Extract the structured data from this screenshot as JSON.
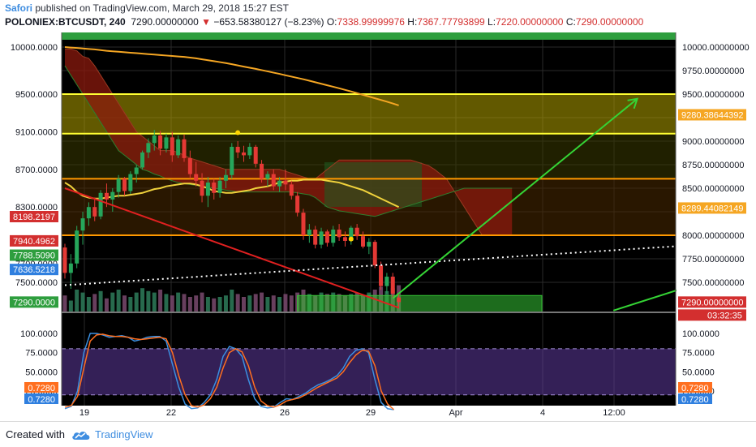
{
  "header": {
    "author": "Safori",
    "published": "published on TradingView.com, March 29, 2018 15:27 EST",
    "symbol": "POLONIEX:BTCUSDT, 240",
    "price": "7290.00000000",
    "arrow": "▼",
    "change": "−653.58380127 (−8.23%)",
    "o_label": "O:",
    "o_value": "7338.99999976",
    "h_label": "H:",
    "h_value": "7367.77793899",
    "l_label": "L:",
    "l_value": "7220.00000000",
    "c_label": "C:",
    "c_value": "7290.00000000"
  },
  "footer": {
    "created_with": "Created with",
    "brand": "TradingView",
    "logo_icon": "tradingview-cloud-icon"
  },
  "colors": {
    "background": "#000000",
    "grid": "#2a2a2a",
    "candle_up": "#26a65b",
    "candle_down": "#e53935",
    "kumo_bear": "#8b1a0e",
    "kumo_bull": "#1f5a1f",
    "ma_yellow": "#f0d23c",
    "ma_orange": "#f5a623",
    "stoch_k": "#3b8fe0",
    "stoch_d": "#ff6f1f",
    "stoch_band": "#5e3a9e"
  },
  "chart_data": [
    {
      "type": "line",
      "title": "POLONIEX:BTCUSDT, 240",
      "y_axis_left": {
        "ticks": [
          "10000.0000",
          "9500.0000",
          "9100.0000",
          "8700.0000",
          "8300.0000",
          "7700.0000",
          "7500.0000"
        ],
        "badges": [
          {
            "text": "8198.2197",
            "value": 8198.2197,
            "color": "#d32f2f"
          },
          {
            "text": "7940.4962",
            "value": 7940.4962,
            "color": "#d32f2f"
          },
          {
            "text": "7788.5090",
            "value": 7788.509,
            "color": "#2e9e3e"
          },
          {
            "text": "7636.5218",
            "value": 7636.5218,
            "color": "#2f7fdf"
          },
          {
            "text": "7290.0000",
            "value": 7290.0,
            "color": "#2e9e3e"
          }
        ]
      },
      "y_axis_right": {
        "ticks": [
          "10000.00000000",
          "9750.00000000",
          "9500.00000000",
          "9000.00000000",
          "8750.00000000",
          "8500.00000000",
          "8000.00000000",
          "7750.00000000",
          "7500.00000000"
        ],
        "badges": [
          {
            "text": "9280.38644392",
            "value": 9280.38644392,
            "color": "#f5a623"
          },
          {
            "text": "8289.44082149",
            "value": 8289.44082149,
            "color": "#f5a623"
          },
          {
            "text": "7290.00000000",
            "value": 7290.0,
            "color": "#d32f2f"
          },
          {
            "text": "03:32:35",
            "color": "#d32f2f"
          }
        ]
      },
      "x_axis": {
        "ticks": [
          "19",
          "22",
          "26",
          "29",
          "Apr",
          "4",
          "12:00"
        ]
      },
      "horizontal_levels": [
        {
          "value": 9500,
          "color": "#ffff33"
        },
        {
          "value": 9080,
          "color": "#ffff33"
        },
        {
          "value": 8600,
          "color": "#ff9900"
        },
        {
          "value": 8000,
          "color": "#ff9900"
        }
      ],
      "zones": [
        {
          "from": 9080,
          "to": 9500,
          "color": "#b3a300"
        },
        {
          "from": 8600,
          "to": 9080,
          "color": "#3a3a00"
        },
        {
          "from": 8000,
          "to": 8600,
          "color": "#4a2a00"
        }
      ],
      "candles": [
        [
          7870,
          7910,
          7540,
          7600
        ],
        [
          7600,
          7800,
          7430,
          7700
        ],
        [
          7700,
          8100,
          7650,
          8050
        ],
        [
          8050,
          8250,
          7900,
          8180
        ],
        [
          8180,
          8350,
          8100,
          8300
        ],
        [
          8300,
          8400,
          8150,
          8200
        ],
        [
          8200,
          8480,
          8170,
          8450
        ],
        [
          8450,
          8550,
          8300,
          8380
        ],
        [
          8380,
          8500,
          8250,
          8460
        ],
        [
          8460,
          8640,
          8400,
          8600
        ],
        [
          8600,
          8620,
          8420,
          8470
        ],
        [
          8470,
          8680,
          8440,
          8650
        ],
        [
          8650,
          8750,
          8560,
          8720
        ],
        [
          8720,
          8900,
          8700,
          8880
        ],
        [
          8880,
          9030,
          8820,
          8980
        ],
        [
          8980,
          9120,
          8900,
          9060
        ],
        [
          9060,
          9110,
          8850,
          8920
        ],
        [
          8920,
          9080,
          8880,
          9040
        ],
        [
          9040,
          9100,
          8780,
          8850
        ],
        [
          8850,
          9060,
          8820,
          9020
        ],
        [
          9020,
          9070,
          8780,
          8820
        ],
        [
          8820,
          8900,
          8600,
          8650
        ],
        [
          8650,
          8780,
          8520,
          8580
        ],
        [
          8580,
          8660,
          8350,
          8420
        ],
        [
          8420,
          8620,
          8300,
          8560
        ],
        [
          8560,
          8600,
          8380,
          8450
        ],
        [
          8450,
          8620,
          8400,
          8580
        ],
        [
          8580,
          8700,
          8500,
          8640
        ],
        [
          8640,
          8980,
          8600,
          8940
        ],
        [
          8940,
          9000,
          8820,
          8880
        ],
        [
          8880,
          8950,
          8780,
          8850
        ],
        [
          8850,
          8980,
          8810,
          8940
        ],
        [
          8940,
          8960,
          8720,
          8760
        ],
        [
          8760,
          8800,
          8560,
          8600
        ],
        [
          8600,
          8680,
          8520,
          8650
        ],
        [
          8650,
          8700,
          8480,
          8520
        ],
        [
          8520,
          8620,
          8460,
          8580
        ],
        [
          8580,
          8700,
          8480,
          8540
        ],
        [
          8540,
          8580,
          8380,
          8420
        ],
        [
          8420,
          8460,
          8200,
          8240
        ],
        [
          8240,
          8280,
          7950,
          8000
        ],
        [
          8000,
          8120,
          7920,
          8060
        ],
        [
          8060,
          8100,
          7860,
          7900
        ],
        [
          7900,
          8080,
          7860,
          8040
        ],
        [
          8040,
          8060,
          7880,
          7920
        ],
        [
          7920,
          8100,
          7880,
          8060
        ],
        [
          8060,
          8120,
          7940,
          7980
        ],
        [
          7980,
          8040,
          7880,
          7940
        ],
        [
          7940,
          8100,
          7900,
          8080
        ],
        [
          8080,
          8120,
          7950,
          7990
        ],
        [
          7990,
          8040,
          7860,
          7880
        ],
        [
          7880,
          7970,
          7800,
          7930
        ],
        [
          7930,
          7950,
          7650,
          7680
        ],
        [
          7680,
          7720,
          7420,
          7460
        ],
        [
          7460,
          7600,
          7380,
          7560
        ],
        [
          7560,
          7600,
          7340,
          7380
        ],
        [
          7338.99999976,
          7367.77793899,
          7220,
          7290
        ]
      ],
      "volume": [
        220,
        150,
        300,
        260,
        200,
        240,
        280,
        180,
        260,
        300,
        220,
        200,
        260,
        320,
        280,
        260,
        300,
        240,
        220,
        260,
        240,
        200,
        220,
        260,
        200,
        180,
        200,
        220,
        300,
        240,
        200,
        220,
        240,
        260,
        200,
        220,
        200,
        240,
        220,
        260,
        300,
        240,
        220,
        260,
        240,
        260,
        240,
        220,
        240,
        260,
        220,
        260,
        300,
        340,
        280,
        320,
        360
      ],
      "ma_yellow": [
        8560,
        8520,
        8460,
        8420,
        8400,
        8390,
        8390,
        8400,
        8410,
        8420,
        8420,
        8430,
        8440,
        8450,
        8470,
        8490,
        8500,
        8520,
        8530,
        8540,
        8550,
        8550,
        8540,
        8520,
        8500,
        8470,
        8460,
        8450,
        8450,
        8460,
        8470,
        8480,
        8500,
        8510,
        8520,
        8540,
        8560,
        8570,
        8580,
        8580,
        8590,
        8590,
        8590,
        8590,
        8580,
        8570,
        8560,
        8540,
        8520,
        8500,
        8480,
        8450,
        8420,
        8390,
        8360,
        8330,
        8300
      ],
      "ma_orange": [
        10000,
        9995,
        9990,
        9985,
        9980,
        9975,
        9968,
        9960,
        9955,
        9950,
        9945,
        9940,
        9935,
        9930,
        9925,
        9920,
        9915,
        9910,
        9905,
        9900,
        9895,
        9888,
        9880,
        9870,
        9860,
        9850,
        9840,
        9830,
        9818,
        9805,
        9792,
        9780,
        9768,
        9755,
        9742,
        9728,
        9715,
        9700,
        9686,
        9672,
        9658,
        9642,
        9626,
        9610,
        9594,
        9578,
        9562,
        9545,
        9528,
        9510,
        9492,
        9474,
        9456,
        9438,
        9420,
        9400,
        9380
      ],
      "kumo_top": [
        9980,
        9980,
        9960,
        9900,
        9880,
        9800,
        9700,
        9600,
        9500,
        9400,
        9300,
        9200,
        9100,
        9050,
        9000,
        8950,
        8900,
        8900,
        8900,
        8880,
        8850,
        8820,
        8800,
        8780,
        8760,
        8740,
        8720,
        8700,
        8700,
        8700,
        8700,
        8700,
        8700,
        8700,
        8700,
        8700,
        8700,
        8680,
        8660,
        8640,
        8620,
        8600,
        8600,
        8650,
        8700,
        8750,
        8800,
        8800,
        8800,
        8800,
        8800,
        8800,
        8800,
        8800,
        8800,
        8800,
        8800,
        8800,
        8800,
        8780,
        8760,
        8740,
        8700,
        8650,
        8600,
        8500,
        8400,
        8300,
        8200,
        8100,
        8000,
        8000,
        8000,
        8000,
        8000,
        8000
      ],
      "kumo_bottom": [
        9800,
        9700,
        9600,
        9500,
        9400,
        9300,
        9200,
        9100,
        9000,
        8900,
        8850,
        8800,
        8750,
        8700,
        8680,
        8650,
        8630,
        8600,
        8580,
        8560,
        8550,
        8540,
        8530,
        8520,
        8510,
        8500,
        8490,
        8480,
        8470,
        8460,
        8460,
        8460,
        8460,
        8460,
        8460,
        8460,
        8460,
        8460,
        8460,
        8450,
        8440,
        8430,
        8400,
        8350,
        8300,
        8280,
        8260,
        8250,
        8240,
        8230,
        8220,
        8210,
        8200,
        8220,
        8240,
        8260,
        8280,
        8300,
        8320,
        8340,
        8360,
        8380,
        8400,
        8420,
        8440,
        8460,
        8480,
        8500,
        8500,
        8500,
        8500,
        8500,
        8500,
        8500,
        8500,
        8500
      ],
      "trendline_red": {
        "from": {
          "bar": 0,
          "price": 8500
        },
        "to": {
          "bar": 56,
          "price": 7230
        }
      },
      "trendline_white_dotted": {
        "from": {
          "bar": 0,
          "price": 7470
        },
        "to": {
          "bar": 134,
          "price": 8010
        }
      },
      "trendlines_green": [
        {
          "from": {
            "bar": 55,
            "price": 7330
          },
          "to": {
            "bar": 96,
            "price": 9450
          }
        },
        {
          "from": {
            "bar": 92,
            "price": 7200
          },
          "to": {
            "bar": 134,
            "price": 8050
          }
        }
      ],
      "box_bottom_green": {
        "from": {
          "bar": 39,
          "price": 7360
        },
        "to": {
          "bar": 80,
          "price": 7185
        }
      },
      "markers": [
        {
          "bar": 29,
          "price": 9090
        },
        {
          "bar": 48,
          "price": 7960
        }
      ]
    },
    {
      "type": "line",
      "title": "Stochastic",
      "y_axis_left": {
        "ticks": [
          "100.0000",
          "75.0000",
          "50.0000",
          "25.0000"
        ],
        "badges": [
          {
            "text": "0.7280",
            "color": "#ff6f1f"
          },
          {
            "text": "0.7280",
            "color": "#2f7fdf"
          }
        ]
      },
      "y_axis_right": {
        "ticks": [
          "100.0000",
          "75.0000",
          "50.0000",
          "25.0000"
        ],
        "badges": [
          {
            "text": "0.7280",
            "color": "#ff6f1f"
          },
          {
            "text": "0.7280",
            "color": "#2f7fdf"
          }
        ]
      },
      "band": [
        20,
        80
      ],
      "series": [
        {
          "values": [
            2,
            5,
            25,
            75,
            100,
            100,
            98,
            95,
            96,
            97,
            95,
            90,
            92,
            95,
            96,
            96,
            90,
            60,
            30,
            8,
            2,
            3,
            10,
            20,
            40,
            70,
            83,
            80,
            70,
            40,
            15,
            5,
            3,
            4,
            10,
            15,
            14,
            18,
            22,
            28,
            33,
            36,
            40,
            45,
            55,
            70,
            78,
            80,
            75,
            40,
            10,
            2,
            0.728
          ]
        },
        {
          "values": [
            4,
            6,
            18,
            55,
            90,
            98,
            99,
            97,
            96,
            96,
            95,
            93,
            92,
            93,
            94,
            95,
            93,
            75,
            45,
            20,
            6,
            4,
            7,
            15,
            30,
            55,
            75,
            80,
            76,
            58,
            30,
            12,
            6,
            4,
            7,
            12,
            14,
            16,
            20,
            25,
            30,
            34,
            38,
            42,
            50,
            62,
            72,
            78,
            77,
            58,
            25,
            8,
            0.728
          ]
        }
      ]
    }
  ]
}
